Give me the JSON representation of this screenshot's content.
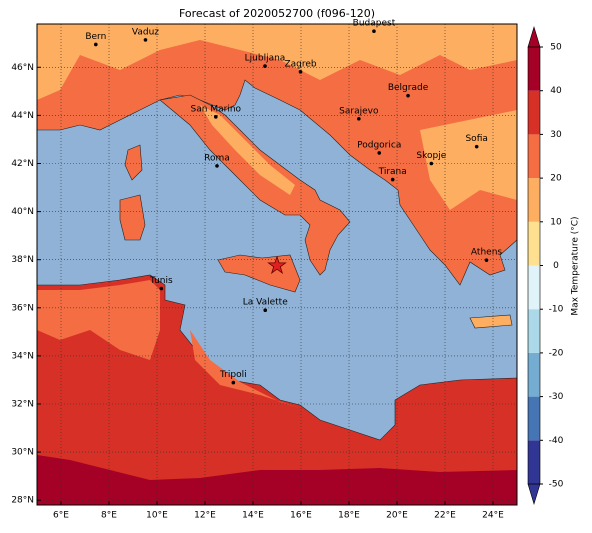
{
  "map": {
    "title": "Forecast of 2020052700 (f096-120)",
    "lonlim": [
      5,
      25
    ],
    "latlim": [
      27.8,
      47.8
    ],
    "xticks": [
      {
        "value": 6,
        "label": "6°E"
      },
      {
        "value": 8,
        "label": "8°E"
      },
      {
        "value": 10,
        "label": "10°E"
      },
      {
        "value": 12,
        "label": "12°E"
      },
      {
        "value": 14,
        "label": "14°E"
      },
      {
        "value": 16,
        "label": "16°E"
      },
      {
        "value": 18,
        "label": "18°E"
      },
      {
        "value": 20,
        "label": "20°E"
      },
      {
        "value": 22,
        "label": "22°E"
      },
      {
        "value": 24,
        "label": "24°E"
      }
    ],
    "yticks": [
      {
        "value": 28,
        "label": "28°N"
      },
      {
        "value": 30,
        "label": "30°N"
      },
      {
        "value": 32,
        "label": "32°N"
      },
      {
        "value": 34,
        "label": "34°N"
      },
      {
        "value": 36,
        "label": "36°N"
      },
      {
        "value": 38,
        "label": "38°N"
      },
      {
        "value": 40,
        "label": "40°N"
      },
      {
        "value": 42,
        "label": "42°N"
      },
      {
        "value": 44,
        "label": "44°N"
      },
      {
        "value": 46,
        "label": "46°N"
      }
    ],
    "grid": true,
    "cities": [
      {
        "name": "Bern",
        "lon": 7.45,
        "lat": 46.95
      },
      {
        "name": "Vaduz",
        "lon": 9.52,
        "lat": 47.14
      },
      {
        "name": "Budapest",
        "lon": 19.04,
        "lat": 47.5
      },
      {
        "name": "Ljubljana",
        "lon": 14.5,
        "lat": 46.05
      },
      {
        "name": "Zagreb",
        "lon": 15.98,
        "lat": 45.81
      },
      {
        "name": "Belgrade",
        "lon": 20.46,
        "lat": 44.82
      },
      {
        "name": "San Marino",
        "lon": 12.45,
        "lat": 43.94
      },
      {
        "name": "Sarajevo",
        "lon": 18.41,
        "lat": 43.86
      },
      {
        "name": "Roma",
        "lon": 12.5,
        "lat": 41.9
      },
      {
        "name": "Podgorica",
        "lon": 19.26,
        "lat": 42.44
      },
      {
        "name": "Skopje",
        "lon": 21.43,
        "lat": 42.0
      },
      {
        "name": "Sofia",
        "lon": 23.32,
        "lat": 42.7
      },
      {
        "name": "Tirana",
        "lon": 19.82,
        "lat": 41.33
      },
      {
        "name": "Athens",
        "lon": 23.73,
        "lat": 37.98
      },
      {
        "name": "Tunis",
        "lon": 10.18,
        "lat": 36.8
      },
      {
        "name": "La Valette",
        "lon": 14.51,
        "lat": 35.9
      },
      {
        "name": "Tripoli",
        "lon": 13.18,
        "lat": 32.89
      }
    ],
    "star": {
      "lon": 15,
      "lat": 37.75,
      "color": "#e02020"
    },
    "colorbar": {
      "label": "Max Temperature (°C)",
      "lim": [
        -50,
        50
      ],
      "ticks": [
        -50,
        -40,
        -30,
        -20,
        -10,
        0,
        10,
        20,
        30,
        40,
        50
      ],
      "colors": [
        "#313695",
        "#4575b4",
        "#74add1",
        "#abd9e9",
        "#e0f3f8",
        "#fee090",
        "#fdae61",
        "#f46d43",
        "#d73027",
        "#a50026"
      ]
    }
  }
}
